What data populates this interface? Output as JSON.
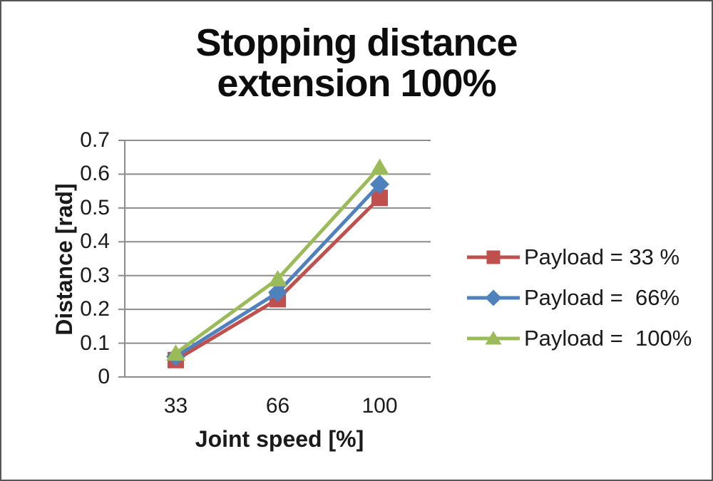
{
  "chart_data": {
    "type": "line",
    "title": "Stopping distance",
    "subtitle": "extension 100%",
    "xlabel": "Joint speed [%]",
    "ylabel": "Distance [rad]",
    "categories": [
      "33",
      "66",
      "100"
    ],
    "series": [
      {
        "name": "Payload = 33 %",
        "color": "#C0504D",
        "marker": "square",
        "values": [
          0.05,
          0.23,
          0.53
        ]
      },
      {
        "name": "Payload =  66%",
        "color": "#4F81BD",
        "marker": "diamond",
        "values": [
          0.06,
          0.25,
          0.57
        ]
      },
      {
        "name": "Payload =  100%",
        "color": "#9BBB59",
        "marker": "triangle",
        "values": [
          0.07,
          0.29,
          0.62
        ]
      }
    ],
    "ylim": [
      0,
      0.7
    ],
    "ytick_labels": [
      "0",
      "0.1",
      "0.2",
      "0.3",
      "0.4",
      "0.5",
      "0.6",
      "0.7"
    ],
    "grid": "horizontal-only",
    "legend_position": "right",
    "gridline_color": "#8C8C8C",
    "axis_color": "#8C8C8C",
    "text_color": "#1a1a1a",
    "title_color": "#0d0d0d"
  }
}
